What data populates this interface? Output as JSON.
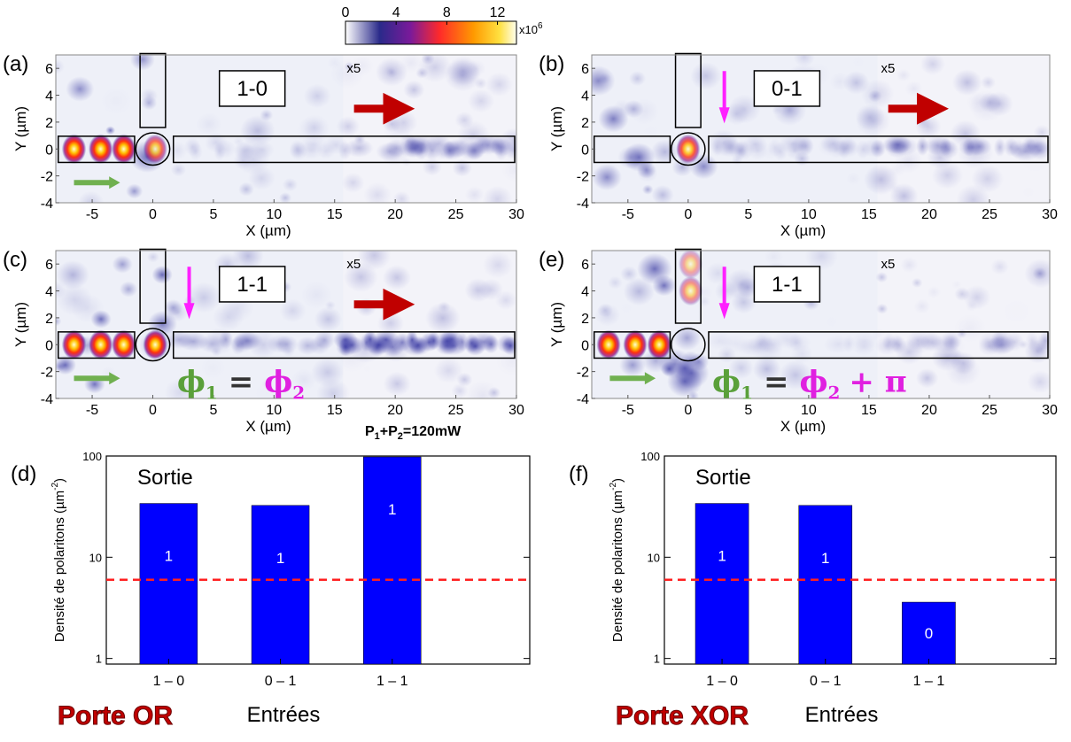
{
  "chart_data": [
    {
      "type": "heatmap",
      "panel": "(a)",
      "state": "1-0",
      "gain_label": "x5",
      "xlabel": "X (µm)",
      "ylabel": "Y (µm)",
      "xlim": [
        -8,
        30
      ],
      "ylim": [
        -4,
        7
      ],
      "xticks": [
        -5,
        0,
        5,
        10,
        15,
        20,
        25,
        30
      ],
      "yticks": [
        -4,
        -2,
        0,
        2,
        4,
        6
      ],
      "colorbar": {
        "lim": [
          0,
          13.5
        ],
        "ticks": [
          0,
          4,
          8,
          12
        ],
        "multiplier": "x10",
        "exponent": "6"
      }
    },
    {
      "type": "heatmap",
      "panel": "(b)",
      "state": "0-1",
      "gain_label": "x5",
      "xlabel": "X (µm)",
      "ylabel": "Y (µm)",
      "xlim": [
        -8,
        30
      ],
      "ylim": [
        -4,
        7
      ],
      "xticks": [
        -5,
        0,
        5,
        10,
        15,
        20,
        25,
        30
      ],
      "yticks": [
        -4,
        -2,
        0,
        2,
        4,
        6
      ]
    },
    {
      "type": "heatmap",
      "panel": "(c)",
      "state": "1-1",
      "gain_label": "x5",
      "xlabel": "X (µm)",
      "ylabel": "Y (µm)",
      "xlim": [
        -8,
        30
      ],
      "ylim": [
        -4,
        7
      ],
      "xticks": [
        -5,
        0,
        5,
        10,
        15,
        20,
        25,
        30
      ],
      "yticks": [
        -4,
        -2,
        0,
        2,
        4,
        6
      ],
      "equation": {
        "lhs": "ϕ",
        "lhs_sub": "1",
        "op": "=",
        "rhs": "ϕ",
        "rhs_sub": "2"
      },
      "power_label": [
        "P",
        "1",
        "+P",
        "2",
        "=120mW"
      ]
    },
    {
      "type": "heatmap",
      "panel": "(e)",
      "state": "1-1",
      "gain_label": "x5",
      "xlabel": "X (µm)",
      "ylabel": "Y (µm)",
      "xlim": [
        -8,
        30
      ],
      "ylim": [
        -4,
        7
      ],
      "xticks": [
        -5,
        0,
        5,
        10,
        15,
        20,
        25,
        30
      ],
      "yticks": [
        -4,
        -2,
        0,
        2,
        4,
        6
      ],
      "equation": {
        "lhs": "ϕ",
        "lhs_sub": "1",
        "op": "=",
        "rhs": "ϕ",
        "rhs_sub": "2",
        "rhs_extra": "+ π"
      }
    },
    {
      "type": "bar",
      "panel": "(d)",
      "annotation": "Sortie",
      "xlabel": "Entrées",
      "gate": "Porte OR",
      "ylabel": "Densité de polaritons (µm",
      "ylabel_sup": "-2",
      "ylabel_end": ")",
      "categories": [
        "1 – 0",
        "0 – 1",
        "1 – 1"
      ],
      "values": [
        34,
        32.5,
        98
      ],
      "logic_outputs": [
        "1",
        "1",
        "1"
      ],
      "color": "#0000ff",
      "log_scale": true,
      "ylim": [
        0.88,
        100
      ],
      "yticks": [
        1,
        10,
        100
      ],
      "threshold": 6,
      "threshold_color": "#ff2020"
    },
    {
      "type": "bar",
      "panel": "(f)",
      "annotation": "Sortie",
      "xlabel": "Entrées",
      "gate": "Porte XOR",
      "ylabel": "Densité de polaritons (µm",
      "ylabel_sup": "-2",
      "ylabel_end": ")",
      "categories": [
        "1 – 0",
        "0 – 1",
        "1 – 1"
      ],
      "values": [
        34,
        32.5,
        3.6
      ],
      "logic_outputs": [
        "1",
        "1",
        "0"
      ],
      "color": "#0000ff",
      "log_scale": true,
      "ylim": [
        0.88,
        100
      ],
      "yticks": [
        1,
        10,
        100
      ],
      "threshold": 6,
      "threshold_color": "#ff2020"
    }
  ]
}
